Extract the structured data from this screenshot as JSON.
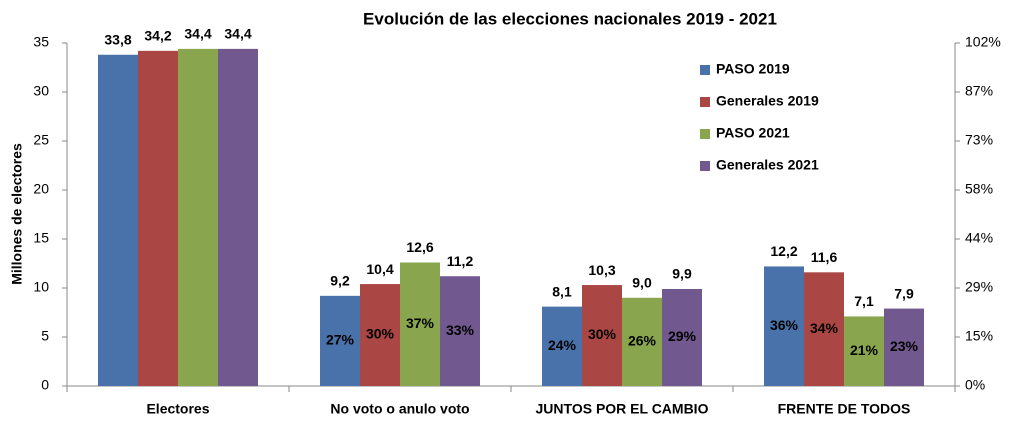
{
  "chart_data": {
    "type": "bar",
    "title": "Evolución de las elecciones nacionales 2019 - 2021",
    "y_label": "Millones de electores",
    "categories": [
      "Electores",
      "No voto o anulo voto",
      "JUNTOS POR EL CAMBIO",
      "FRENTE DE TODOS"
    ],
    "series": [
      {
        "name": "PASO 2019",
        "color": "#4a72aa",
        "values": [
          33.8,
          9.2,
          8.1,
          12.2
        ],
        "value_labels": [
          "33,8",
          "9,2",
          "8,1",
          "12,2"
        ],
        "shares": [
          null,
          27,
          24,
          36
        ],
        "share_labels": [
          null,
          "27%",
          "24%",
          "36%"
        ]
      },
      {
        "name": "Generales 2019",
        "color": "#aa4643",
        "values": [
          34.2,
          10.4,
          10.3,
          11.6
        ],
        "value_labels": [
          "34,2",
          "10,4",
          "10,3",
          "11,6"
        ],
        "shares": [
          null,
          30,
          30,
          34
        ],
        "share_labels": [
          null,
          "30%",
          "30%",
          "34%"
        ]
      },
      {
        "name": "PASO 2021",
        "color": "#89a54e",
        "values": [
          34.4,
          12.6,
          9.0,
          7.1
        ],
        "value_labels": [
          "34,4",
          "12,6",
          "9,0",
          "7,1"
        ],
        "shares": [
          null,
          37,
          26,
          21
        ],
        "share_labels": [
          null,
          "37%",
          "26%",
          "21%"
        ]
      },
      {
        "name": "Generales 2021",
        "color": "#71588f",
        "values": [
          34.4,
          11.2,
          9.9,
          7.9
        ],
        "value_labels": [
          "34,4",
          "11,2",
          "9,9",
          "7,9"
        ],
        "shares": [
          null,
          33,
          29,
          23
        ],
        "share_labels": [
          null,
          "33%",
          "29%",
          "23%"
        ]
      }
    ],
    "ylim": [
      0,
      35
    ],
    "yticks": [
      0,
      5,
      10,
      15,
      20,
      25,
      30,
      35
    ],
    "y2lim": [
      0,
      101.74
    ],
    "y2ticks": [
      {
        "value": 0,
        "label": "0%"
      },
      {
        "value": 14.53,
        "label": "15%"
      },
      {
        "value": 29.07,
        "label": "29%"
      },
      {
        "value": 43.6,
        "label": "44%"
      },
      {
        "value": 58.14,
        "label": "58%"
      },
      {
        "value": 72.67,
        "label": "73%"
      },
      {
        "value": 87.21,
        "label": "87%"
      },
      {
        "value": 101.74,
        "label": "102%"
      }
    ],
    "grid": false,
    "legend": "upper right"
  }
}
